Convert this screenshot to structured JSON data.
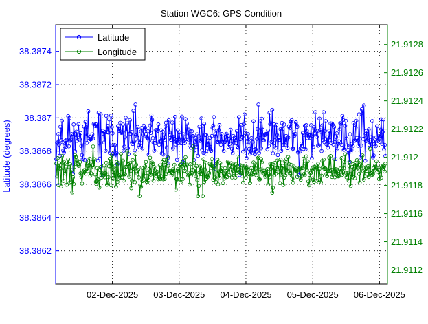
{
  "chart_data": {
    "type": "line",
    "title": "Station WGC6: GPS Condition",
    "xlabel": "",
    "ylabel": "Latitude (degrees)",
    "y2label": "",
    "grid": true,
    "legend_position": "top-left",
    "x_ticks": [
      "02-Dec-2025",
      "03-Dec-2025",
      "04-Dec-2025",
      "05-Dec-2025",
      "06-Dec-2025"
    ],
    "x_tick_values": [
      1.0,
      2.0,
      3.0,
      4.0,
      5.0
    ],
    "xlim": [
      0.15,
      5.12
    ],
    "ylim_left": [
      38.386,
      38.38756
    ],
    "ylim_right": [
      21.9111,
      21.91294
    ],
    "y_ticks_left": [
      "38.3862",
      "38.3864",
      "38.3866",
      "38.3868",
      "38.387",
      "38.3872",
      "38.3874"
    ],
    "y_tick_values_left": [
      38.3862,
      38.3864,
      38.3866,
      38.3868,
      38.387,
      38.3872,
      38.3874
    ],
    "y_ticks_right": [
      "21.9112",
      "21.9114",
      "21.9116",
      "21.9118",
      "21.912",
      "21.9122",
      "21.9124",
      "21.9126",
      "21.9128"
    ],
    "y_tick_values_right": [
      21.9112,
      21.9114,
      21.9116,
      21.9118,
      21.912,
      21.9122,
      21.9124,
      21.9126,
      21.9128
    ],
    "series": [
      {
        "name": "Latitude",
        "axis": "left",
        "color": "#0000ff",
        "x_start": 0.16,
        "x_step": 0.0104,
        "count": 475,
        "mean": 38.38688,
        "spread": 7e-05,
        "min": 38.38655,
        "max": 38.38708,
        "seed": 11
      },
      {
        "name": "Longitude",
        "axis": "right",
        "color": "#008000",
        "x_start": 0.16,
        "x_step": 0.0104,
        "count": 475,
        "mean": 21.9119,
        "spread": 5.5e-05,
        "min": 21.91167,
        "max": 21.91227,
        "seed": 29
      }
    ]
  }
}
